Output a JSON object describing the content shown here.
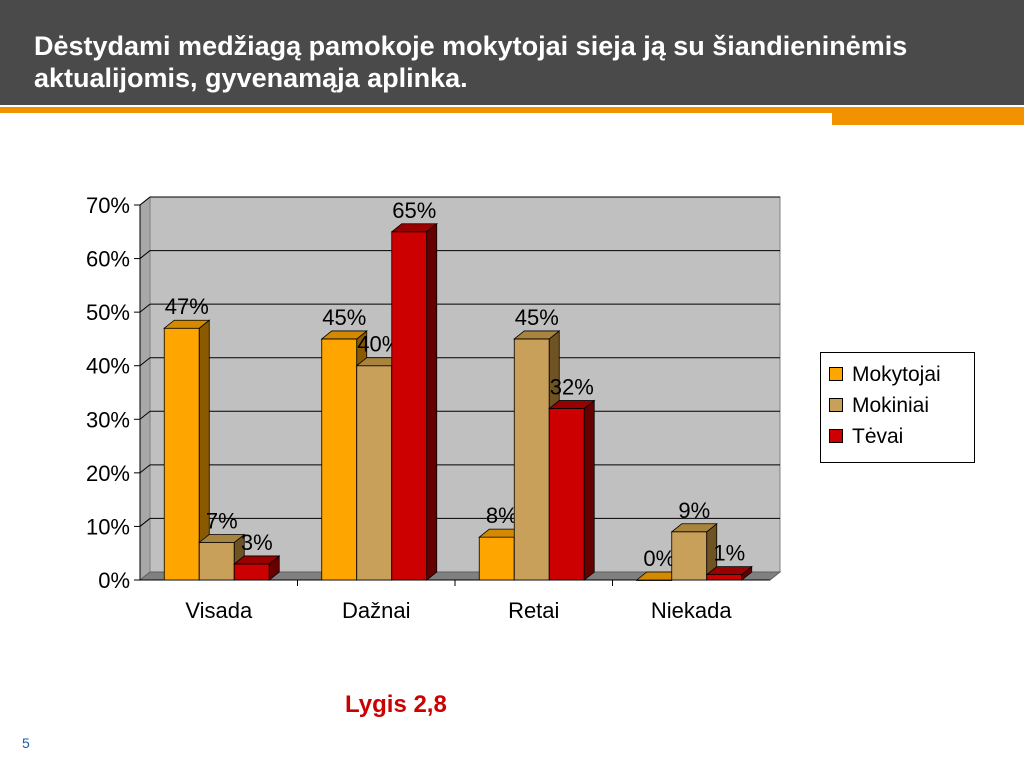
{
  "header": {
    "title": "Dėstydami medžiagą pamokoje mokytojai sieja ją su šiandieninėmis aktualijomis, gyvenamąja aplinka."
  },
  "chart_data": {
    "type": "bar",
    "title": "",
    "xlabel": "",
    "ylabel": "",
    "categories": [
      "Visada",
      "Dažnai",
      "Retai",
      "Niekada"
    ],
    "series": [
      {
        "name": "Mokytojai",
        "values": [
          47,
          45,
          8,
          0
        ],
        "labels": [
          "47%",
          "45%",
          "8%",
          "0%"
        ],
        "color": "#ffa500",
        "side_color": "#8a5a00",
        "top_color": "#d48a00"
      },
      {
        "name": "Mokiniai",
        "values": [
          7,
          40,
          45,
          9
        ],
        "labels": [
          "7%",
          "40%",
          "45%",
          "9%"
        ],
        "color": "#c8a05a",
        "side_color": "#6f5323",
        "top_color": "#a8843e"
      },
      {
        "name": "Tėvai",
        "values": [
          3,
          65,
          32,
          1
        ],
        "labels": [
          "3%",
          "65%",
          "32%",
          "1%"
        ],
        "color": "#cc0000",
        "side_color": "#660000",
        "top_color": "#990000"
      }
    ],
    "ylim": [
      0,
      70
    ],
    "yticks": [
      0,
      10,
      20,
      30,
      40,
      50,
      60,
      70
    ],
    "ytick_labels": [
      "0%",
      "10%",
      "20%",
      "30%",
      "40%",
      "50%",
      "60%",
      "70%"
    ],
    "grid": true,
    "legend_position": "right",
    "plot_background": "#c0c0c0"
  },
  "footer": {
    "caption": "Lygis 2,8",
    "page_number": "5"
  }
}
